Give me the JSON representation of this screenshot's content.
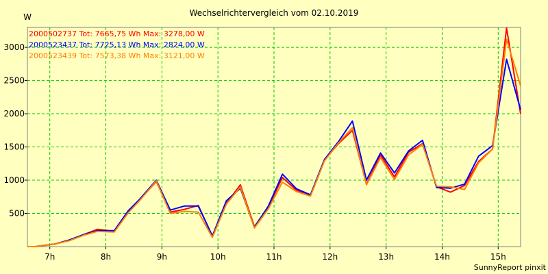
{
  "chart_data": {
    "type": "line",
    "title": "Wechselrichtervergleich vom 02.10.2019",
    "ylabel": "W",
    "xlabel": "",
    "footer": "SunnyReport pinxit",
    "grid": true,
    "legend_position": "top-left",
    "xlim": [
      6.6,
      15.4
    ],
    "ylim": [
      0,
      3300
    ],
    "x_ticks": [
      7,
      8,
      9,
      10,
      11,
      12,
      13,
      14,
      15
    ],
    "x_tick_labels": [
      "7h",
      "8h",
      "9h",
      "10h",
      "11h",
      "12h",
      "13h",
      "14h",
      "15h"
    ],
    "y_ticks": [
      500,
      1000,
      1500,
      2000,
      2500,
      3000
    ],
    "y_tick_labels": [
      "500",
      "1000",
      "1500",
      "2000",
      "2500",
      "3000"
    ],
    "x": [
      6.6,
      6.75,
      6.9,
      7.1,
      7.35,
      7.6,
      7.85,
      8.15,
      8.4,
      8.6,
      8.9,
      9.15,
      9.4,
      9.65,
      9.9,
      10.15,
      10.4,
      10.65,
      10.9,
      11.15,
      11.4,
      11.65,
      11.9,
      12.15,
      12.4,
      12.65,
      12.9,
      13.15,
      13.4,
      13.65,
      13.9,
      14.15,
      14.4,
      14.65,
      14.9,
      15.15,
      15.4
    ],
    "series": [
      {
        "name": "2000502737",
        "legend": "2000502737 Tot: 7665,75 Wh Max: 3278,00 W",
        "color": "#ff0000",
        "values": [
          0,
          0,
          20,
          40,
          100,
          180,
          260,
          230,
          520,
          700,
          980,
          520,
          560,
          620,
          160,
          650,
          930,
          300,
          600,
          1040,
          850,
          770,
          1300,
          1550,
          1750,
          940,
          1380,
          1050,
          1420,
          1550,
          900,
          820,
          920,
          1280,
          1470,
          3290,
          2000
        ]
      },
      {
        "name": "2000523437",
        "legend": "2000523437 Tot: 7725,13 Wh Max: 2824,00 W",
        "color": "#0000ff",
        "values": [
          0,
          0,
          20,
          40,
          100,
          180,
          240,
          240,
          540,
          710,
          1000,
          550,
          610,
          610,
          160,
          690,
          880,
          290,
          610,
          1090,
          870,
          780,
          1310,
          1580,
          1890,
          1000,
          1410,
          1110,
          1440,
          1600,
          890,
          880,
          940,
          1360,
          1520,
          2820,
          2060
        ]
      },
      {
        "name": "2000523439",
        "legend": "2000523439 Tot: 7573,38 Wh Max: 3121,00 W",
        "color": "#ff8000",
        "values": [
          0,
          0,
          20,
          40,
          90,
          170,
          230,
          220,
          510,
          690,
          990,
          500,
          530,
          520,
          140,
          640,
          900,
          280,
          570,
          970,
          830,
          760,
          1290,
          1560,
          1790,
          930,
          1340,
          1010,
          1380,
          1540,
          910,
          900,
          860,
          1260,
          1470,
          3120,
          2420
        ]
      }
    ]
  }
}
